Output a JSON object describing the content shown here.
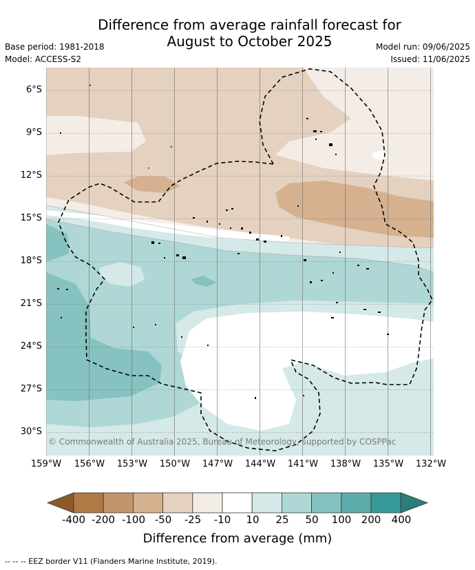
{
  "header": {
    "title_line1": "Difference from average rainfall forecast for",
    "title_line2": "August to October 2025",
    "base_period": "Base period: 1981-2018",
    "model": "Model: ACCESS-S2",
    "model_run": "Model run: 09/06/2025",
    "issued": "Issued: 11/06/2025"
  },
  "map": {
    "lat_labels": [
      "6°S",
      "9°S",
      "12°S",
      "15°S",
      "18°S",
      "21°S",
      "24°S",
      "27°S",
      "30°S"
    ],
    "lon_labels": [
      "159°W",
      "156°W",
      "153°W",
      "150°W",
      "147°W",
      "144°W",
      "141°W",
      "138°W",
      "135°W",
      "132°W"
    ],
    "copyright": "© Commonwealth of Australia 2025, Bureau of Meteorology, supported by COSPPac"
  },
  "colorbar": {
    "labels": [
      "-400",
      "-200",
      "-100",
      "-50",
      "-25",
      "-10",
      "10",
      "25",
      "50",
      "100",
      "200",
      "400"
    ],
    "colors": [
      "#8c5a2b",
      "#b07a44",
      "#c3956b",
      "#d5b190",
      "#e5d1c0",
      "#f4ede7",
      "#ffffff",
      "#d5e9e8",
      "#afd7d6",
      "#86c2c0",
      "#5cadab",
      "#369b98",
      "#2a7e7c"
    ],
    "title": "Difference from average (mm)"
  },
  "footer": {
    "legend": "--  --  -- EEZ border V11 (Flanders Marine Institute, 2019)."
  }
}
